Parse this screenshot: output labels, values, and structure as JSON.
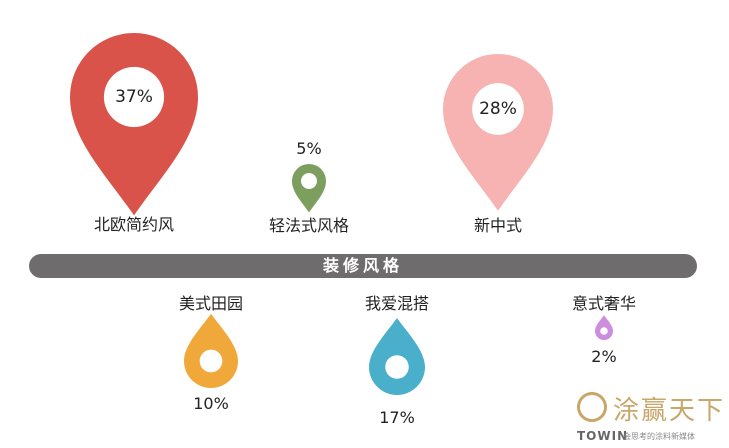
{
  "chart_data": {
    "type": "pie",
    "title": "装修风格",
    "categories": [
      "北欧简约风",
      "轻法式风格",
      "新中式",
      "美式田园",
      "我爱混搭",
      "意式奢华"
    ],
    "values": [
      37,
      5,
      28,
      10,
      17,
      2
    ],
    "value_labels": [
      "37%",
      "5%",
      "28%",
      "10%",
      "17%",
      "2%"
    ],
    "colors": [
      "#d9534a",
      "#7c9e5e",
      "#f7b3b1",
      "#f1a83a",
      "#49afcb",
      "#cd8ddc"
    ]
  },
  "logo": {
    "name": "涂赢天下",
    "brand": "TOWIN",
    "tagline": "会思考的涂料新媒体"
  }
}
